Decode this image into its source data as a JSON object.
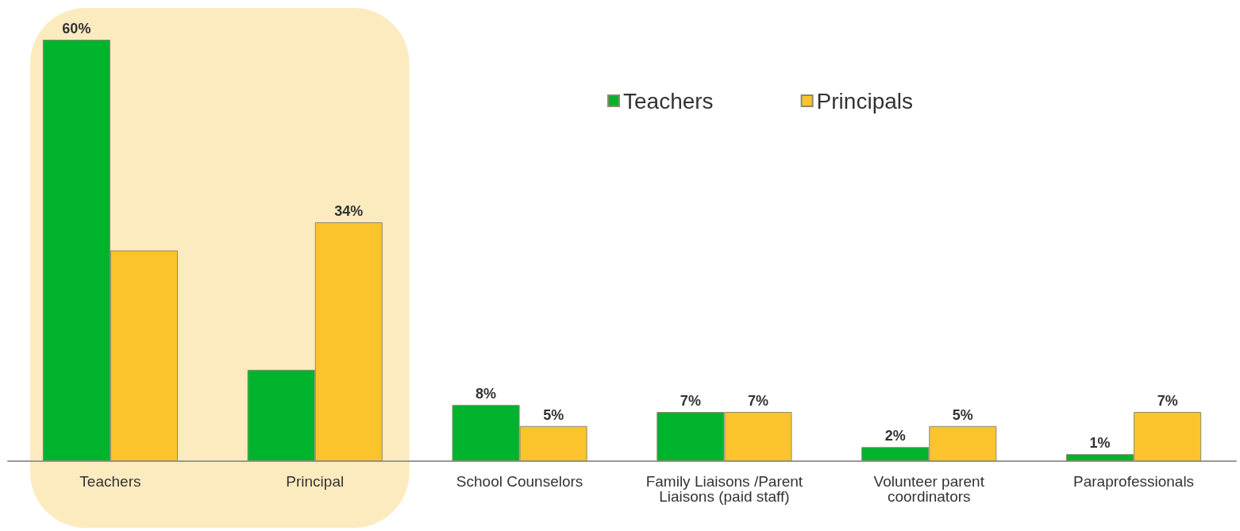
{
  "chart_data": {
    "type": "bar",
    "categories": [
      "Teachers",
      "Principal",
      "School Counselors",
      "Family Liaisons /Parent Liaisons (paid staff)",
      "Volunteer parent coordinators",
      "Paraprofessionals"
    ],
    "series": [
      {
        "name": "Teachers",
        "color": "#00b32d",
        "values": [
          60,
          13,
          8,
          7,
          2,
          1
        ],
        "value_labels": [
          "60%",
          null,
          "8%",
          "7%",
          "2%",
          "1%"
        ]
      },
      {
        "name": "Principals",
        "color": "#fcc42c",
        "values": [
          30,
          34,
          5,
          7,
          5,
          7
        ],
        "value_labels": [
          null,
          "34%",
          "5%",
          "7%",
          "5%",
          "7%"
        ]
      }
    ],
    "bands": [
      {
        "axis": "x",
        "from": "Teachers",
        "to": "Principal",
        "color": "#fdebc0"
      }
    ],
    "legend": "top"
  }
}
